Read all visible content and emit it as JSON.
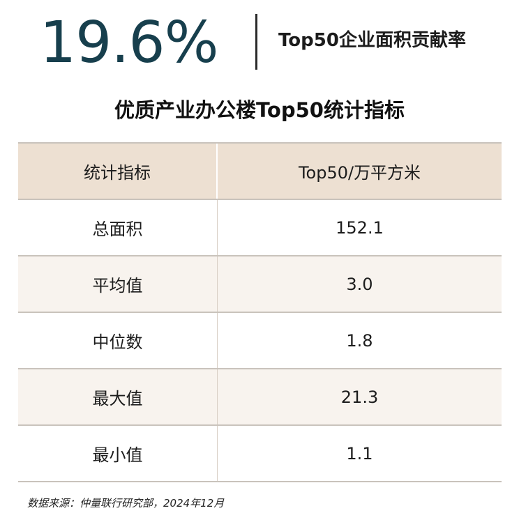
{
  "kpi": {
    "value": "19.6%",
    "label": "Top50企业面积贡献率"
  },
  "chart_data": {
    "type": "table",
    "title": "优质产业办公楼Top50统计指标",
    "columns": [
      "统计指标",
      "Top50/万平方米"
    ],
    "rows": [
      {
        "metric": "总面积",
        "value": "152.1"
      },
      {
        "metric": "平均值",
        "value": "3.0"
      },
      {
        "metric": "中位数",
        "value": "1.8"
      },
      {
        "metric": "最大值",
        "value": "21.3"
      },
      {
        "metric": "最小值",
        "value": "1.1"
      }
    ]
  },
  "source": "数据来源：仲量联行研究部，2024年12月",
  "colors": {
    "kpi": "#173f4d",
    "header_bg": "#ede0d2",
    "alt_row_bg": "#f8f3ee",
    "rule": "#c9c3bc"
  }
}
